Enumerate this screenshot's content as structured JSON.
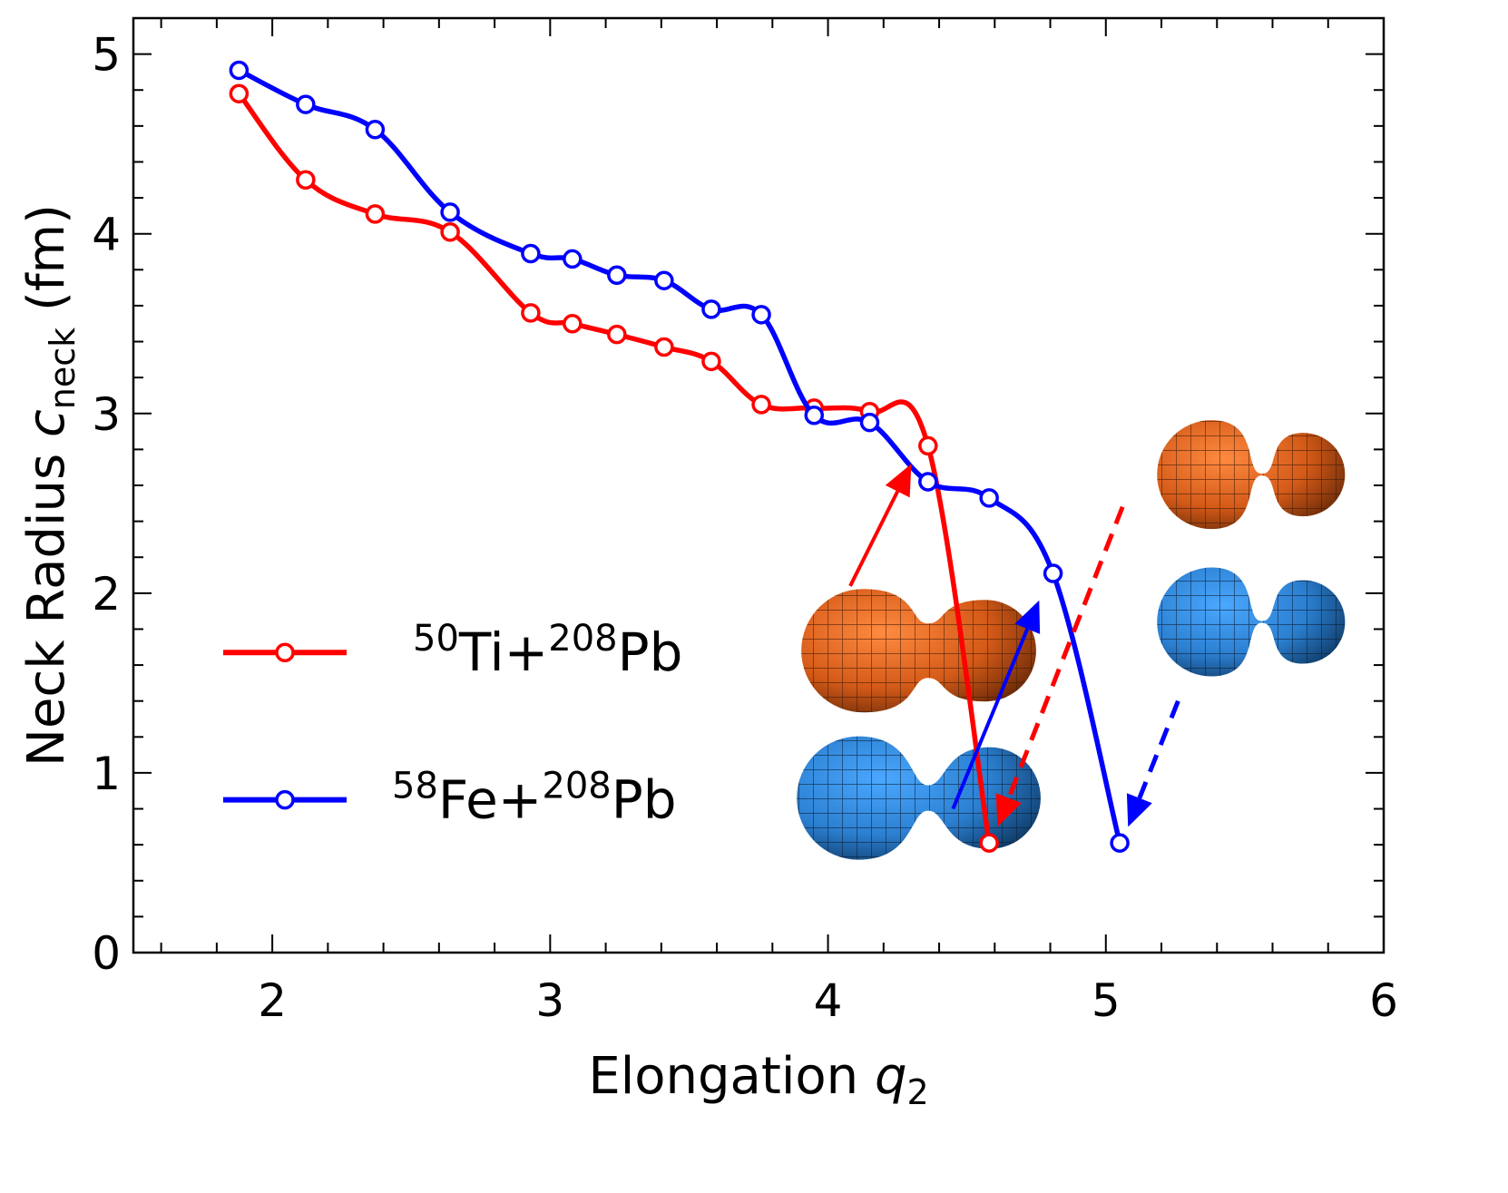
{
  "chart_data": {
    "type": "line",
    "xlabel": {
      "prefix": "Elongation ",
      "var": "q",
      "sub": "2"
    },
    "ylabel": {
      "prefix": "Neck Radius ",
      "var": "c",
      "sub": "neck",
      "suffix": " (fm)"
    },
    "xlim": [
      1.5,
      6.0
    ],
    "ylim": [
      0,
      5.2
    ],
    "xticks": [
      2,
      3,
      4,
      5,
      6
    ],
    "yticks": [
      0,
      1,
      2,
      3,
      4,
      5
    ],
    "x_minor_step": 0.2,
    "y_minor_step": 0.2,
    "grid": false,
    "legend_position": "lower-left",
    "series": [
      {
        "name": "50Ti+208Pb",
        "legend": {
          "mass1": "50",
          "el1": "Ti",
          "plus": "+",
          "mass2": "208",
          "el2": "Pb"
        },
        "color": "#ff0000",
        "x": [
          1.88,
          2.12,
          2.37,
          2.64,
          2.93,
          3.08,
          3.24,
          3.41,
          3.58,
          3.76,
          3.95,
          4.15,
          4.36,
          4.58
        ],
        "y": [
          4.78,
          4.3,
          4.11,
          4.01,
          3.56,
          3.5,
          3.44,
          3.37,
          3.29,
          3.05,
          3.03,
          3.01,
          2.82,
          0.61
        ]
      },
      {
        "name": "58Fe+208Pb",
        "legend": {
          "mass1": "58",
          "el1": "Fe",
          "plus": "+",
          "mass2": "208",
          "el2": "Pb"
        },
        "color": "#0000ff",
        "x": [
          1.88,
          2.12,
          2.37,
          2.64,
          2.93,
          3.08,
          3.24,
          3.41,
          3.58,
          3.76,
          3.95,
          4.15,
          4.36,
          4.58,
          4.81,
          5.05
        ],
        "y": [
          4.91,
          4.72,
          4.58,
          4.12,
          3.89,
          3.86,
          3.77,
          3.74,
          3.58,
          3.55,
          2.99,
          2.95,
          2.62,
          2.53,
          2.11,
          0.61
        ]
      }
    ],
    "annotations": [
      {
        "type": "arrow",
        "style": "solid",
        "color": "#ff0000",
        "from": [
          4.08,
          2.04
        ],
        "to": [
          4.3,
          2.72
        ]
      },
      {
        "type": "arrow",
        "style": "solid",
        "color": "#0000ff",
        "from": [
          4.45,
          0.8
        ],
        "to": [
          4.76,
          1.96
        ]
      },
      {
        "type": "arrow",
        "style": "dashed",
        "color": "#ff0000",
        "from": [
          5.06,
          2.48
        ],
        "to": [
          4.61,
          0.7
        ]
      },
      {
        "type": "arrow",
        "style": "dashed",
        "color": "#0000ff",
        "from": [
          5.26,
          1.4
        ],
        "to": [
          5.08,
          0.7
        ]
      }
    ],
    "insets": [
      {
        "name": "ti-shape-inset",
        "description_color": "#e06020",
        "neck": "wide",
        "at": [
          4.35,
          1.68
        ]
      },
      {
        "name": "fe-shape-inset",
        "description_color": "#2d86d6",
        "neck": "narrow",
        "at": [
          4.35,
          0.86
        ]
      },
      {
        "name": "ti-scission-shape-inset",
        "description_color": "#e06020",
        "neck": "pinched",
        "at": [
          5.55,
          2.66
        ]
      },
      {
        "name": "fe-scission-shape-inset",
        "description_color": "#2d86d6",
        "neck": "pinched",
        "at": [
          5.55,
          1.84
        ]
      }
    ]
  }
}
